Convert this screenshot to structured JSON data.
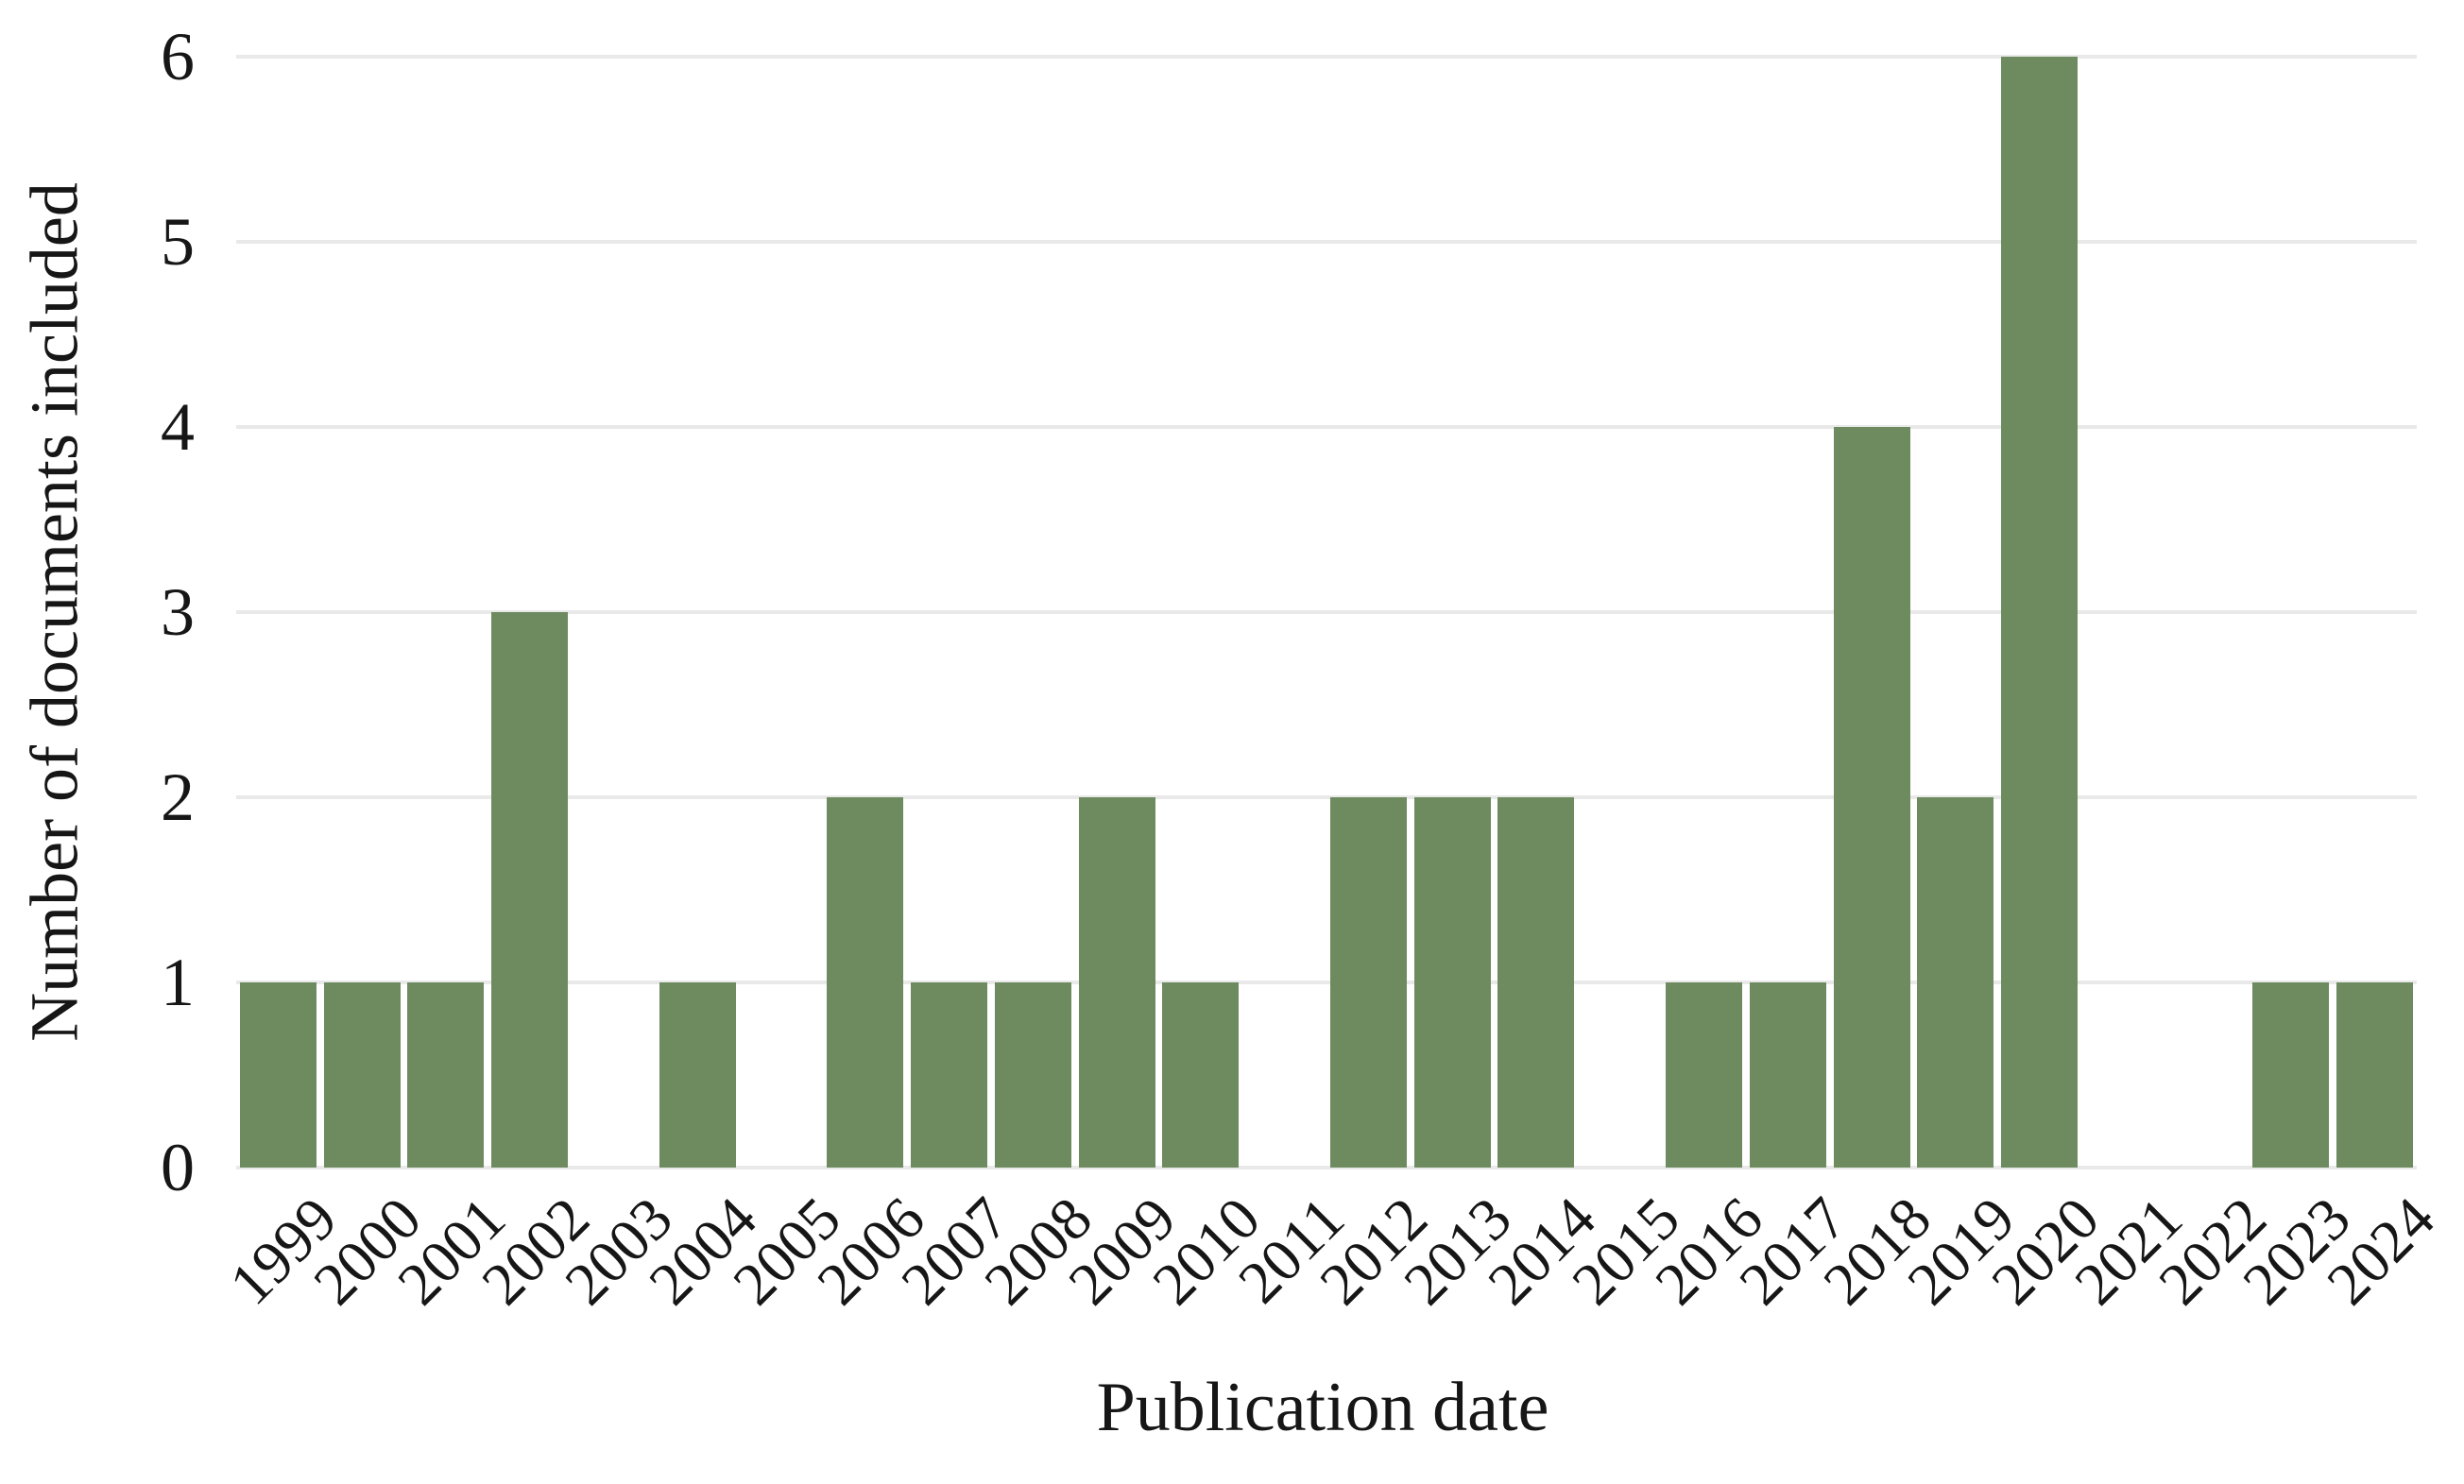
{
  "chart_data": {
    "type": "bar",
    "title": "",
    "xlabel": "Publication date",
    "ylabel": "Number of documents included",
    "categories": [
      "1999",
      "2000",
      "2001",
      "2002",
      "2003",
      "2004",
      "2005",
      "2006",
      "2007",
      "2008",
      "2009",
      "2010",
      "2011",
      "2012",
      "2013",
      "2014",
      "2015",
      "2016",
      "2017",
      "2018",
      "2019",
      "2020",
      "2021",
      "2022",
      "2023",
      "2024"
    ],
    "values": [
      1,
      1,
      1,
      3,
      0,
      1,
      0,
      2,
      1,
      1,
      2,
      1,
      0,
      2,
      2,
      2,
      0,
      1,
      1,
      4,
      2,
      6,
      0,
      0,
      1,
      1
    ],
    "ylim": [
      0,
      6
    ],
    "yticks": [
      0,
      1,
      2,
      3,
      4,
      5,
      6
    ],
    "grid": "horizontal",
    "legend_position": "none",
    "x_tick_rotation_deg": -45,
    "colors": {
      "bar": "#6D8B5F",
      "gridline": "#E9E9E9",
      "text": "#161616",
      "background": "#FFFFFF"
    }
  }
}
